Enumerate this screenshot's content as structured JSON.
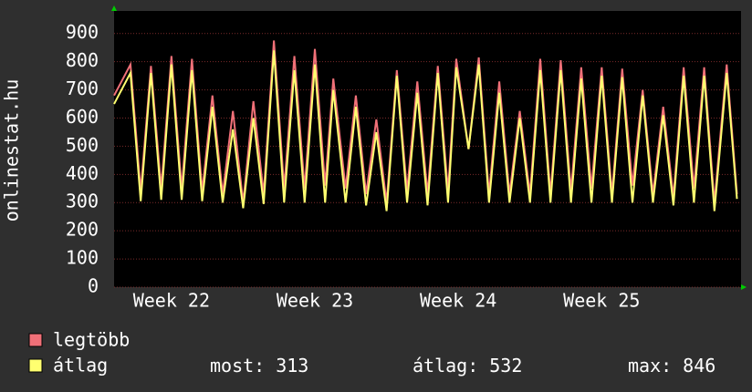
{
  "chart_data": {
    "type": "line",
    "y_label": "onlinestat.hu",
    "x": [
      0,
      0.8,
      1.3,
      1.8,
      2.3,
      2.8,
      3.3,
      3.8,
      4.3,
      4.8,
      5.3,
      5.8,
      6.3,
      6.8,
      7.3,
      7.8,
      8.3,
      8.8,
      9.3,
      9.8,
      10.3,
      10.7,
      11.3,
      11.8,
      12.3,
      12.8,
      13.3,
      13.8,
      14.3,
      14.8,
      15.3,
      15.8,
      16.3,
      16.7,
      17.3,
      17.8,
      18.3,
      18.8,
      19.3,
      19.8,
      20.3,
      20.8,
      21.3,
      21.8,
      22.3,
      22.8,
      23.3,
      23.8,
      24.3,
      24.8,
      25.3,
      25.8,
      26.3,
      26.8,
      27.3,
      27.8,
      28.3,
      28.8,
      29.3,
      29.9,
      30.4
    ],
    "series": [
      {
        "name": "legtöbb",
        "color": "#f07078",
        "values": [
          680,
          790,
          340,
          785,
          350,
          820,
          350,
          810,
          340,
          680,
          330,
          625,
          300,
          660,
          330,
          875,
          350,
          820,
          350,
          845,
          360,
          740,
          350,
          680,
          330,
          595,
          300,
          770,
          340,
          730,
          330,
          785,
          340,
          810,
          490,
          815,
          330,
          730,
          330,
          625,
          330,
          810,
          330,
          805,
          340,
          780,
          350,
          780,
          330,
          775,
          360,
          700,
          330,
          640,
          320,
          780,
          350,
          780,
          300,
          790,
          330
        ]
      },
      {
        "name": "átlag",
        "color": "#ffff70",
        "values": [
          650,
          760,
          305,
          760,
          310,
          790,
          310,
          770,
          305,
          640,
          300,
          560,
          280,
          600,
          295,
          840,
          300,
          770,
          300,
          790,
          300,
          700,
          300,
          640,
          290,
          550,
          270,
          750,
          300,
          690,
          290,
          760,
          300,
          780,
          490,
          790,
          300,
          690,
          300,
          600,
          300,
          770,
          300,
          770,
          300,
          740,
          300,
          750,
          300,
          745,
          300,
          680,
          300,
          610,
          290,
          750,
          300,
          750,
          270,
          760,
          313
        ]
      }
    ],
    "xlim": [
      0,
      30.6
    ],
    "xticks": [
      {
        "value": 2.8,
        "label": "Week 22"
      },
      {
        "value": 9.8,
        "label": "Week 23"
      },
      {
        "value": 16.8,
        "label": "Week 24"
      },
      {
        "value": 23.8,
        "label": "Week 25"
      }
    ],
    "ylim": [
      0,
      980
    ],
    "yticks": [
      0,
      100,
      200,
      300,
      400,
      500,
      600,
      700,
      800,
      900
    ],
    "grid": true,
    "stats": [
      {
        "label": "most:",
        "value": 313
      },
      {
        "label": "átlag:",
        "value": 532
      },
      {
        "label": "max:",
        "value": 846
      }
    ]
  }
}
